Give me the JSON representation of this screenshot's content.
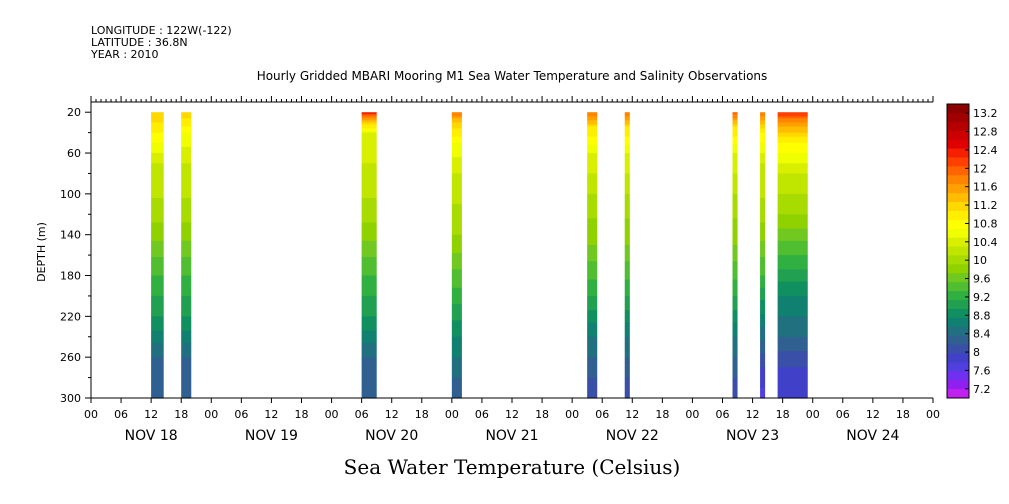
{
  "header": {
    "longitude": "LONGITUDE : 122W(-122)",
    "latitude": "LATITUDE : 36.8N",
    "year": "YEAR : 2010"
  },
  "chart_data": {
    "type": "heatmap",
    "title": "Hourly Gridded MBARI Mooring M1 Sea Water Temperature and Salinity Observations",
    "xlabel": "Sea Water Temperature (Celsius)",
    "ylabel": "DEPTH (m)",
    "ylim": [
      300,
      10
    ],
    "y_ticks": [
      20,
      60,
      100,
      140,
      180,
      220,
      260,
      300
    ],
    "x_unit": "hours since NOV 18 00:00",
    "xlim": [
      0,
      168
    ],
    "hour_labels": [
      "00",
      "06",
      "12",
      "18",
      "00",
      "06",
      "12",
      "18",
      "00",
      "06",
      "12",
      "18",
      "00",
      "06",
      "12",
      "18",
      "00",
      "06",
      "12",
      "18",
      "00",
      "06",
      "12",
      "18",
      "00",
      "06",
      "12",
      "18",
      "00"
    ],
    "day_labels": [
      "NOV 18",
      "NOV 19",
      "NOV 20",
      "NOV 21",
      "NOV 22",
      "NOV 23",
      "NOV 24"
    ],
    "colorbar": {
      "labels": [
        "13.2",
        "12.8",
        "12.4",
        "12",
        "11.6",
        "11.2",
        "10.8",
        "10.4",
        "10",
        "9.6",
        "9.2",
        "8.8",
        "8.4",
        "8",
        "7.6",
        "7.2"
      ],
      "levels": [
        13.4,
        13.2,
        13.0,
        12.8,
        12.6,
        12.4,
        12.2,
        12.0,
        11.8,
        11.6,
        11.4,
        11.2,
        11.0,
        10.8,
        10.6,
        10.4,
        10.2,
        10.0,
        9.8,
        9.6,
        9.4,
        9.2,
        9.0,
        8.8,
        8.6,
        8.4,
        8.2,
        8.0,
        7.8,
        7.6,
        7.4,
        7.2,
        7.0
      ],
      "colors": [
        "#8b0000",
        "#a00000",
        "#b50000",
        "#cc0000",
        "#e00000",
        "#f52000",
        "#ff4000",
        "#ff6400",
        "#ff8400",
        "#ffa000",
        "#ffbc00",
        "#ffd800",
        "#ffee00",
        "#ffff00",
        "#f0ff00",
        "#d8f000",
        "#c0e600",
        "#a8dc00",
        "#90d200",
        "#70c820",
        "#50be30",
        "#30b040",
        "#20a050",
        "#109060",
        "#108070",
        "#207080",
        "#306090",
        "#3a50a8",
        "#4040c8",
        "#5040e0",
        "#7030f0",
        "#9020f0",
        "#c020f0"
      ]
    },
    "segments": [
      {
        "start": 12,
        "end": 14.5,
        "profile": [
          [
            20,
            11.2
          ],
          [
            40,
            10.8
          ],
          [
            70,
            10.2
          ],
          [
            120,
            9.9
          ],
          [
            180,
            9.2
          ],
          [
            220,
            8.8
          ],
          [
            260,
            8.2
          ],
          [
            300,
            8.0
          ]
        ]
      },
      {
        "start": 18,
        "end": 20,
        "profile": [
          [
            20,
            11.2
          ],
          [
            40,
            10.6
          ],
          [
            70,
            10.2
          ],
          [
            120,
            9.9
          ],
          [
            180,
            9.2
          ],
          [
            220,
            8.8
          ],
          [
            260,
            8.2
          ],
          [
            300,
            8.0
          ]
        ]
      },
      {
        "start": 54,
        "end": 57,
        "profile": [
          [
            20,
            12.4
          ],
          [
            26,
            11.6
          ],
          [
            40,
            10.4
          ],
          [
            70,
            10.2
          ],
          [
            120,
            9.9
          ],
          [
            180,
            9.2
          ],
          [
            220,
            8.8
          ],
          [
            260,
            8.2
          ],
          [
            300,
            8.0
          ]
        ]
      },
      {
        "start": 72,
        "end": 74,
        "profile": [
          [
            20,
            11.8
          ],
          [
            30,
            11.2
          ],
          [
            50,
            10.6
          ],
          [
            80,
            10.2
          ],
          [
            140,
            9.8
          ],
          [
            200,
            9.1
          ],
          [
            240,
            8.6
          ],
          [
            280,
            8.2
          ],
          [
            300,
            8.0
          ]
        ]
      },
      {
        "start": 99,
        "end": 101,
        "profile": [
          [
            20,
            11.8
          ],
          [
            35,
            11.0
          ],
          [
            60,
            10.4
          ],
          [
            100,
            10.0
          ],
          [
            150,
            9.6
          ],
          [
            200,
            9.0
          ],
          [
            240,
            8.4
          ],
          [
            280,
            8.0
          ],
          [
            300,
            7.9
          ]
        ]
      },
      {
        "start": 106.5,
        "end": 107.5,
        "profile": [
          [
            20,
            11.8
          ],
          [
            35,
            11.0
          ],
          [
            60,
            10.4
          ],
          [
            100,
            10.0
          ],
          [
            150,
            9.6
          ],
          [
            200,
            9.0
          ],
          [
            240,
            8.4
          ],
          [
            280,
            8.0
          ],
          [
            300,
            7.9
          ]
        ]
      },
      {
        "start": 128,
        "end": 129,
        "profile": [
          [
            20,
            12.0
          ],
          [
            35,
            11.0
          ],
          [
            60,
            10.4
          ],
          [
            100,
            10.0
          ],
          [
            150,
            9.6
          ],
          [
            200,
            9.0
          ],
          [
            240,
            8.4
          ],
          [
            280,
            8.0
          ],
          [
            300,
            7.9
          ]
        ]
      },
      {
        "start": 133.5,
        "end": 134.5,
        "profile": [
          [
            20,
            11.8
          ],
          [
            40,
            10.8
          ],
          [
            70,
            10.2
          ],
          [
            120,
            9.9
          ],
          [
            180,
            9.2
          ],
          [
            230,
            8.4
          ],
          [
            270,
            7.8
          ],
          [
            300,
            7.5
          ]
        ]
      },
      {
        "start": 137,
        "end": 143,
        "profile": [
          [
            20,
            12.2
          ],
          [
            30,
            11.6
          ],
          [
            50,
            10.8
          ],
          [
            80,
            10.2
          ],
          [
            120,
            9.8
          ],
          [
            160,
            9.2
          ],
          [
            200,
            8.6
          ],
          [
            240,
            8.2
          ],
          [
            270,
            7.8
          ],
          [
            300,
            7.6
          ]
        ]
      }
    ]
  }
}
